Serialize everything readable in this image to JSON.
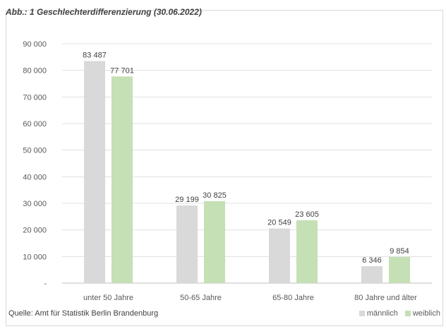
{
  "chart_data": {
    "type": "bar",
    "title": "Abb.: 1 Geschlechterdifferenzierung (30.06.2022)",
    "categories": [
      "unter 50 Jahre",
      "50-65 Jahre",
      "65-80 Jahre",
      "80 Jahre und älter"
    ],
    "series": [
      {
        "name": "männlich",
        "values": [
          83487,
          29199,
          20549,
          6346
        ],
        "labels": [
          "83 487",
          "29 199",
          "20 549",
          "6 346"
        ],
        "color": "#d9d9d9"
      },
      {
        "name": "weiblich",
        "values": [
          77701,
          30825,
          23605,
          9854
        ],
        "labels": [
          "77 701",
          "30 825",
          "23 605",
          "9 854"
        ],
        "color": "#c5e0b4"
      }
    ],
    "ylim": [
      0,
      90000
    ],
    "yticks": [
      0,
      10000,
      20000,
      30000,
      40000,
      50000,
      60000,
      70000,
      80000,
      90000
    ],
    "ytick_labels": [
      "-",
      "10 000",
      "20 000",
      "30 000",
      "40 000",
      "50 000",
      "60 000",
      "70 000",
      "80 000",
      "90 000"
    ],
    "grid": true,
    "legend_position": "bottom-right"
  },
  "source": "Quelle: Amt für Statistik Berlin Brandenburg"
}
